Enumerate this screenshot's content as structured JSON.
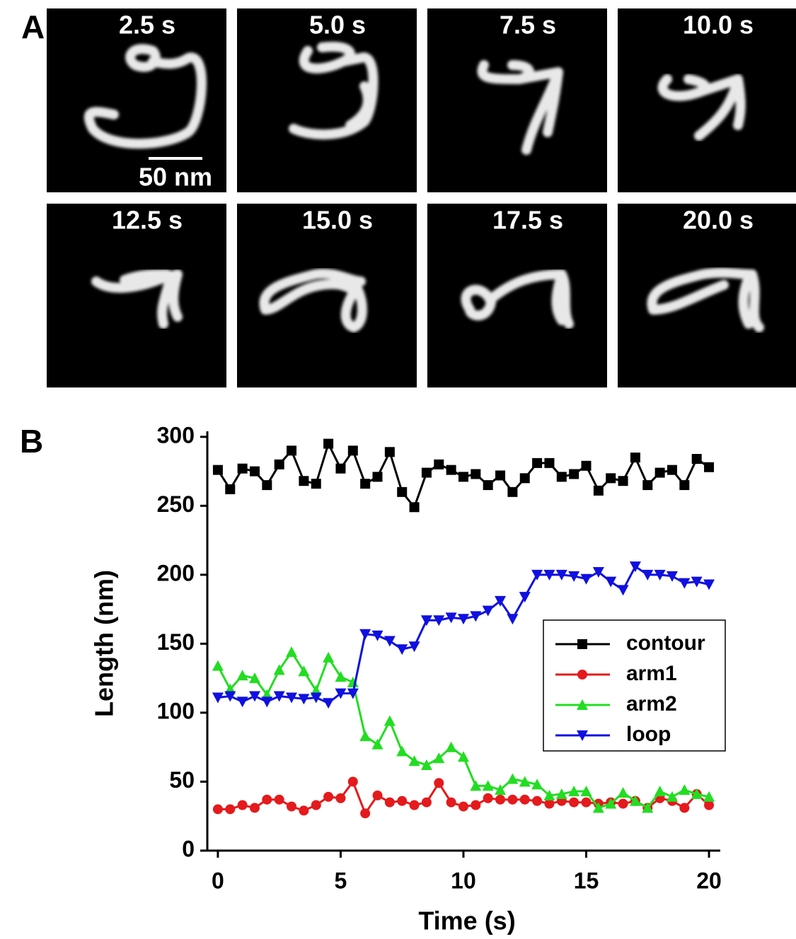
{
  "panel_labels": [
    "A",
    "B"
  ],
  "frames": [
    "2.5 s",
    "5.0 s",
    "7.5 s",
    "10.0 s",
    "12.5 s",
    "15.0 s",
    "17.5 s",
    "20.0 s"
  ],
  "scale_bar": "50 nm",
  "chart_data": {
    "type": "line",
    "xlabel": "Time (s)",
    "ylabel": "Length (nm)",
    "x": [
      0,
      0.5,
      1,
      1.5,
      2,
      2.5,
      3,
      3.5,
      4,
      4.5,
      5,
      5.5,
      6,
      6.5,
      7,
      7.5,
      8,
      8.5,
      9,
      9.5,
      10,
      10.5,
      11,
      11.5,
      12,
      12.5,
      13,
      13.5,
      14,
      14.5,
      15,
      15.5,
      16,
      16.5,
      17,
      17.5,
      18,
      18.5,
      19,
      19.5,
      20
    ],
    "series": [
      {
        "name": "contour",
        "color": "#000000",
        "marker": "square",
        "values": [
          276,
          262,
          277,
          275,
          265,
          280,
          290,
          268,
          266,
          295,
          277,
          290,
          266,
          271,
          289,
          260,
          249,
          274,
          280,
          276,
          271,
          273,
          265,
          272,
          260,
          270,
          281,
          281,
          271,
          273,
          279,
          261,
          270,
          268,
          285,
          265,
          274,
          276,
          265,
          284,
          278
        ]
      },
      {
        "name": "arm1",
        "color": "#e41a1c",
        "marker": "circle",
        "values": [
          30,
          30,
          33,
          31,
          37,
          37,
          32,
          29,
          33,
          39,
          38,
          50,
          27,
          40,
          35,
          36,
          33,
          35,
          49,
          35,
          32,
          33,
          38,
          37,
          37,
          37,
          36,
          34,
          36,
          35,
          35,
          34,
          35,
          34,
          36,
          31,
          38,
          36,
          31,
          41,
          33
        ]
      },
      {
        "name": "arm2",
        "color": "#22dd22",
        "marker": "triangle-up",
        "values": [
          134,
          117,
          127,
          125,
          113,
          131,
          144,
          130,
          116,
          140,
          126,
          122,
          83,
          77,
          94,
          72,
          65,
          62,
          67,
          75,
          68,
          47,
          47,
          44,
          52,
          50,
          48,
          40,
          41,
          43,
          43,
          31,
          34,
          42,
          36,
          31,
          43,
          39,
          44,
          41,
          39
        ]
      },
      {
        "name": "loop",
        "color": "#1010e0",
        "marker": "triangle-down",
        "values": [
          111,
          112,
          108,
          112,
          108,
          112,
          111,
          110,
          111,
          107,
          114,
          114,
          157,
          156,
          152,
          146,
          148,
          167,
          167,
          169,
          168,
          170,
          174,
          181,
          168,
          184,
          200,
          200,
          200,
          199,
          197,
          202,
          195,
          189,
          206,
          200,
          200,
          199,
          194,
          195,
          193
        ]
      }
    ],
    "xlim": [
      -0.43,
      20.46
    ],
    "ylim": [
      0,
      304
    ],
    "xticks": [
      0,
      5,
      10,
      15,
      20
    ],
    "yticks": [
      0,
      50,
      100,
      150,
      200,
      250,
      300
    ]
  }
}
